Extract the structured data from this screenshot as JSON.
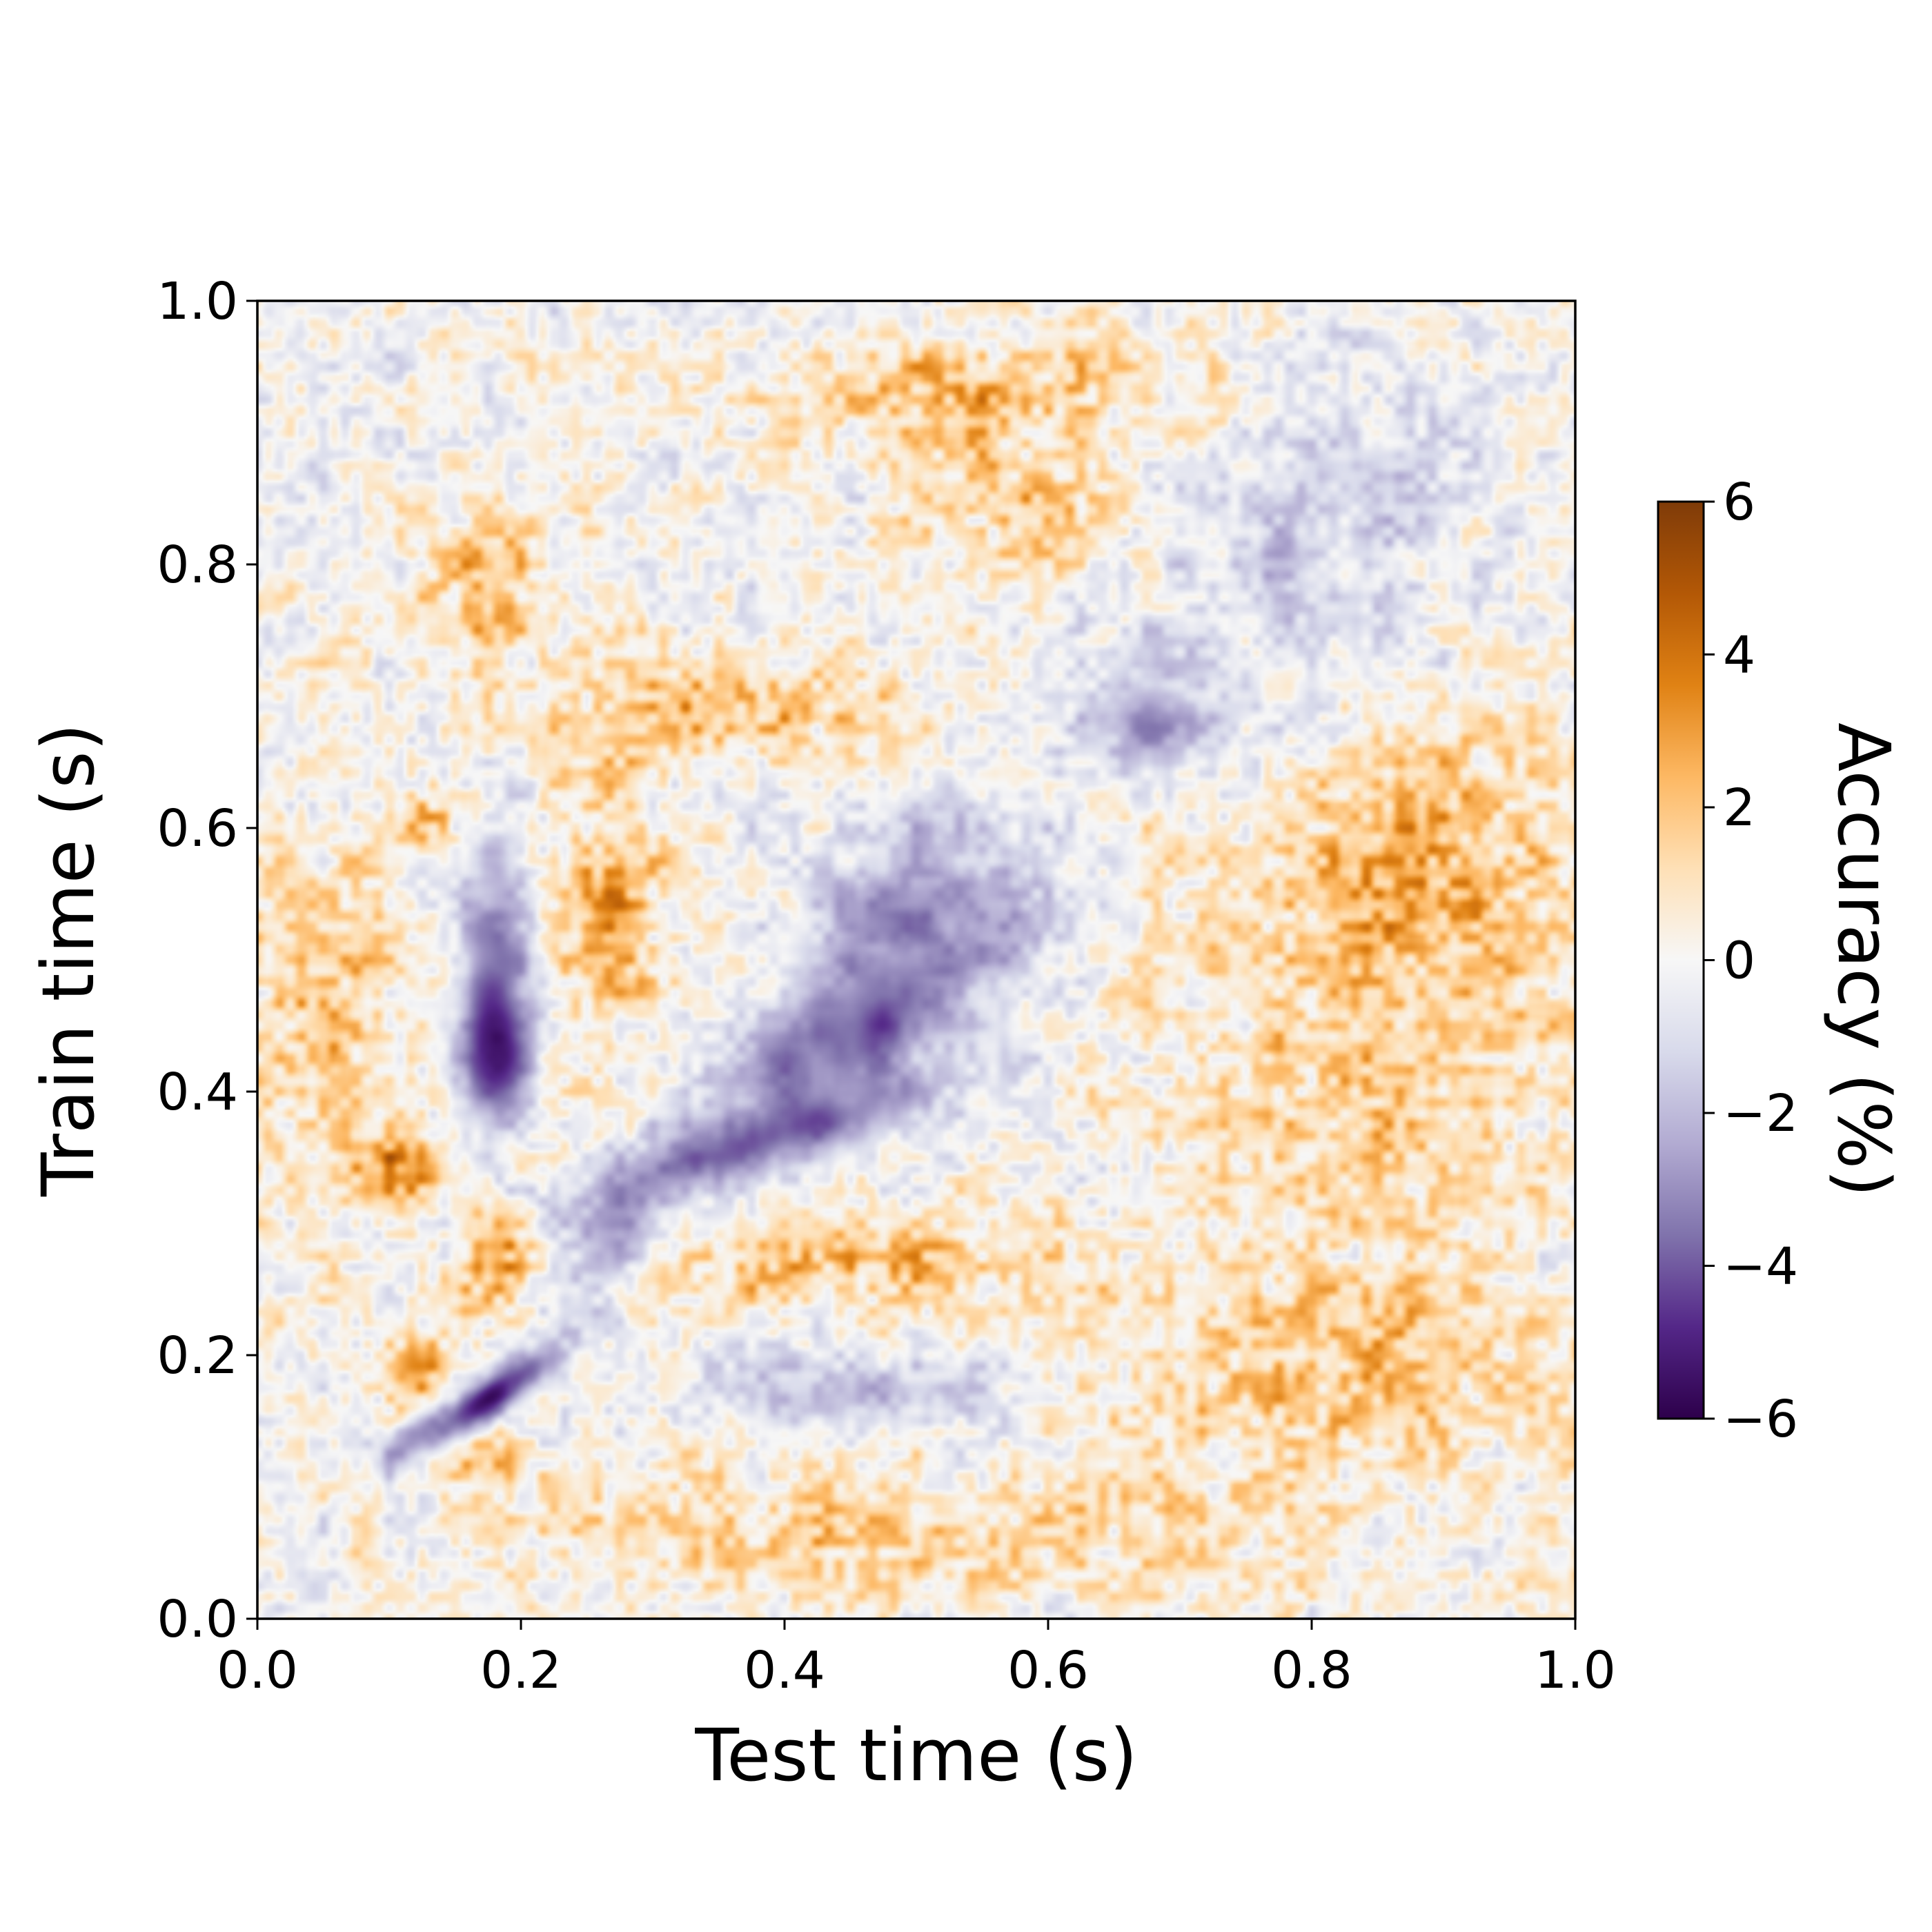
{
  "chart_data": {
    "type": "heatmap",
    "title": "",
    "xlabel": "Test time (s)",
    "ylabel": "Train time (s)",
    "xlim": [
      0.0,
      1.0
    ],
    "ylim": [
      0.0,
      1.0
    ],
    "x_ticks": [
      "0.0",
      "0.2",
      "0.4",
      "0.6",
      "0.8",
      "1.0"
    ],
    "y_ticks": [
      "0.0",
      "0.2",
      "0.4",
      "0.6",
      "0.8",
      "1.0"
    ],
    "grid": false,
    "colorbar": {
      "label": "Accuracy (%)",
      "range": [
        -6,
        6
      ],
      "ticks": [
        "6",
        "4",
        "2",
        "0",
        "−2",
        "−4",
        "−6"
      ],
      "colormap": [
        "#2d004b",
        "#542788",
        "#8073ac",
        "#b2abd2",
        "#d8daeb",
        "#f7f7f7",
        "#fee0b6",
        "#fdb863",
        "#e08214",
        "#b35806",
        "#7f3b08"
      ]
    },
    "features": [
      {
        "x": 0.18,
        "y": 0.17,
        "value": -5.5,
        "sx": 0.035,
        "sy": 0.025,
        "rho": 0.85
      },
      {
        "x": 0.12,
        "y": 0.14,
        "value": -2.5,
        "sx": 0.02,
        "sy": 0.02,
        "rho": 0.6
      },
      {
        "x": 0.18,
        "y": 0.5,
        "value": -3.5,
        "sx": 0.022,
        "sy": 0.065,
        "rho": 0
      },
      {
        "x": 0.18,
        "y": 0.42,
        "value": -3.5,
        "sx": 0.02,
        "sy": 0.035,
        "rho": 0
      },
      {
        "x": 0.38,
        "y": 0.36,
        "value": -3.2,
        "sx": 0.1,
        "sy": 0.035,
        "rho": 0.85
      },
      {
        "x": 0.27,
        "y": 0.28,
        "value": -3.0,
        "sx": 0.03,
        "sy": 0.03,
        "rho": 0.5
      },
      {
        "x": 0.5,
        "y": 0.52,
        "value": -3.0,
        "sx": 0.07,
        "sy": 0.07,
        "rho": 0.3
      },
      {
        "x": 0.43,
        "y": 0.43,
        "value": -2.8,
        "sx": 0.06,
        "sy": 0.04,
        "rho": 0.6
      },
      {
        "x": 0.68,
        "y": 0.68,
        "value": -3.0,
        "sx": 0.04,
        "sy": 0.025,
        "rho": 0
      },
      {
        "x": 0.8,
        "y": 0.82,
        "value": -1.5,
        "sx": 0.08,
        "sy": 0.08,
        "rho": 0.4
      },
      {
        "x": 0.45,
        "y": 0.17,
        "value": -2.2,
        "sx": 0.1,
        "sy": 0.02,
        "rho": 0
      },
      {
        "x": 0.12,
        "y": 0.18,
        "value": 3.0,
        "sx": 0.02,
        "sy": 0.025,
        "rho": 0
      },
      {
        "x": 0.18,
        "y": 0.27,
        "value": 2.8,
        "sx": 0.02,
        "sy": 0.035,
        "rho": 0
      },
      {
        "x": 0.18,
        "y": 0.12,
        "value": 2.5,
        "sx": 0.02,
        "sy": 0.015,
        "rho": 0
      },
      {
        "x": 0.27,
        "y": 0.53,
        "value": 2.5,
        "sx": 0.03,
        "sy": 0.07,
        "rho": 0
      },
      {
        "x": 0.11,
        "y": 0.35,
        "value": 2.8,
        "sx": 0.02,
        "sy": 0.02,
        "rho": 0
      },
      {
        "x": 0.13,
        "y": 0.61,
        "value": 2.2,
        "sx": 0.02,
        "sy": 0.02,
        "rho": 0
      },
      {
        "x": 0.17,
        "y": 0.79,
        "value": 2.5,
        "sx": 0.03,
        "sy": 0.04,
        "rho": 0
      },
      {
        "x": 0.45,
        "y": 0.27,
        "value": 2.3,
        "sx": 0.12,
        "sy": 0.025,
        "rho": 0
      },
      {
        "x": 0.35,
        "y": 0.69,
        "value": 2.3,
        "sx": 0.1,
        "sy": 0.03,
        "rho": 0
      },
      {
        "x": 0.55,
        "y": 0.93,
        "value": 2.3,
        "sx": 0.1,
        "sy": 0.03,
        "rho": 0
      },
      {
        "x": 0.58,
        "y": 0.84,
        "value": 2.0,
        "sx": 0.06,
        "sy": 0.03,
        "rho": 0
      },
      {
        "x": 0.85,
        "y": 0.45,
        "value": 1.8,
        "sx": 0.12,
        "sy": 0.12,
        "rho": 0
      },
      {
        "x": 0.8,
        "y": 0.18,
        "value": 1.8,
        "sx": 0.12,
        "sy": 0.06,
        "rho": 0
      },
      {
        "x": 0.05,
        "y": 0.45,
        "value": 1.8,
        "sx": 0.05,
        "sy": 0.1,
        "rho": 0
      },
      {
        "x": 0.45,
        "y": 0.06,
        "value": 1.6,
        "sx": 0.2,
        "sy": 0.04,
        "rho": 0
      },
      {
        "x": 0.9,
        "y": 0.6,
        "value": 1.6,
        "sx": 0.08,
        "sy": 0.06,
        "rho": 0
      }
    ],
    "noise_amplitude": 1.4
  }
}
